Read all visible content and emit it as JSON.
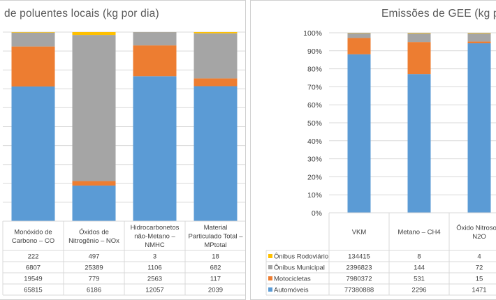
{
  "chart_data": [
    {
      "type": "bar",
      "stacked": "percent",
      "title": "de poluentes locais (kg por dia)",
      "categories": [
        "Monóxido de Carbono – CO",
        "Óxidos de Nitrogênio – NOx",
        "Hidrocarbonetos não-Metano – NMHC",
        "Material Particulado Total – MPtotal"
      ],
      "category_lines": [
        [
          "Monóxido de",
          "Carbono – CO"
        ],
        [
          "Óxidos de",
          "Nitrogênio – NOx"
        ],
        [
          "Hidrocarbonetos",
          "não-Metano –",
          "NMHC"
        ],
        [
          "Material",
          "Particulado Total –",
          "MPtotal"
        ]
      ],
      "series": [
        {
          "key": "onibus_rodoviario",
          "values": [
            222,
            497,
            3,
            18
          ],
          "color": "#FFC000",
          "display": [
            "222",
            "497",
            "3",
            "18"
          ]
        },
        {
          "key": "onibus_municipal",
          "values": [
            6807,
            25389,
            1106,
            682
          ],
          "color": "#A5A5A5",
          "display": [
            "6807",
            "25389",
            "1106",
            "682"
          ]
        },
        {
          "key": "motocicletas",
          "values": [
            19549,
            779,
            2563,
            117
          ],
          "color": "#ED7D31",
          "display": [
            "19549",
            "779",
            "2563",
            "117"
          ]
        },
        {
          "key": "automoveis",
          "values": [
            65815,
            6186,
            12057,
            2039
          ],
          "color": "#5B9BD5",
          "display": [
            "65815",
            "6186",
            "12057",
            "2039"
          ]
        }
      ],
      "grid": true
    },
    {
      "type": "bar",
      "stacked": "percent",
      "title": "Emissões de GEE (kg por d",
      "categories": [
        "VKM",
        "Metano – CH4",
        "Óxido Nitroso – N2O"
      ],
      "category_lines": [
        [
          "VKM"
        ],
        [
          "Metano – CH4"
        ],
        [
          "Óxido Nitroso –",
          "N2O"
        ]
      ],
      "yticks": [
        "0%",
        "10%",
        "20%",
        "30%",
        "40%",
        "50%",
        "60%",
        "70%",
        "80%",
        "90%",
        "100%"
      ],
      "ylim": [
        0,
        100
      ],
      "series": [
        {
          "key": "onibus_rodoviario",
          "name": "Ônibus Rodoviário",
          "values": [
            134415,
            8,
            4
          ],
          "color": "#FFC000",
          "display": [
            "134415",
            "8",
            "4"
          ]
        },
        {
          "key": "onibus_municipal",
          "name": "Ônibus Municipal",
          "values": [
            2396823,
            144,
            72
          ],
          "color": "#A5A5A5",
          "display": [
            "2396823",
            "144",
            "72"
          ]
        },
        {
          "key": "motocicletas",
          "name": "Motocicletas",
          "values": [
            7980372,
            531,
            15
          ],
          "color": "#ED7D31",
          "display": [
            "7980372",
            "531",
            "15"
          ]
        },
        {
          "key": "automoveis",
          "name": "Automóveis",
          "values": [
            77380888,
            2296,
            1471
          ],
          "color": "#5B9BD5",
          "display": [
            "77380888",
            "2296",
            "1471"
          ]
        }
      ],
      "grid": true
    }
  ]
}
